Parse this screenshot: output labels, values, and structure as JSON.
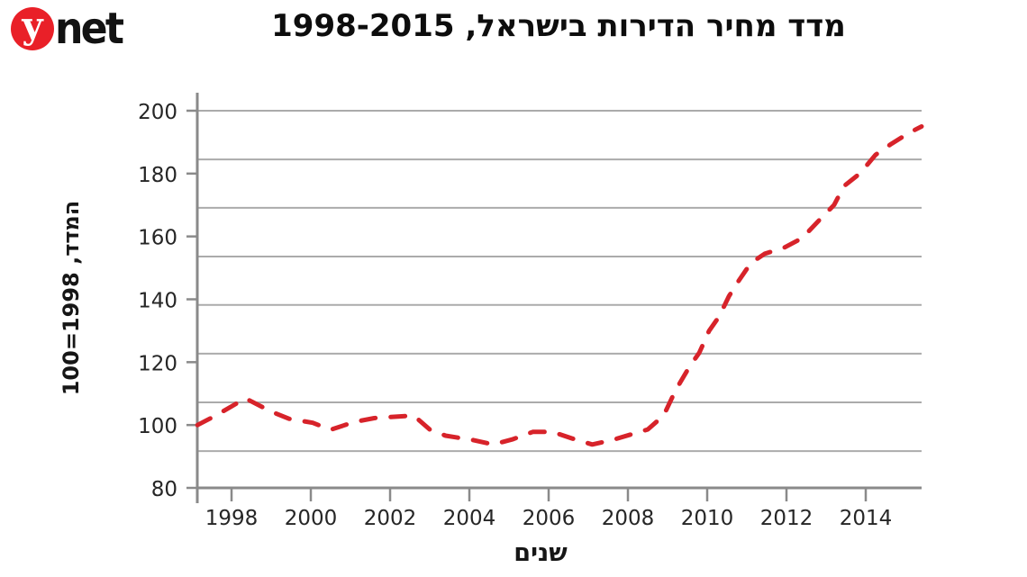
{
  "logo": {
    "brand_circle_letter": "y",
    "brand_rest": "net",
    "circle_color": "#e92028",
    "text_color": "#121212"
  },
  "title": "מדד מחיר הדירות בישראל, 1998-2015",
  "colors": {
    "line": "#d7232a",
    "gridline": "#ababab",
    "axis": "#8a8a8a",
    "tick_text": "#262626"
  },
  "chart_data": {
    "type": "line",
    "title": "מדד מחיר הדירות בישראל, 1998-2015",
    "xlabel": "שנים",
    "ylabel": "המדד, 1998=100",
    "xlim": [
      1997.136,
      2015.409
    ],
    "ylim": [
      80,
      200
    ],
    "x_ticks": [
      1998,
      2000,
      2002,
      2004,
      2006,
      2008,
      2010,
      2012,
      2014
    ],
    "y_ticks": [
      80,
      100,
      120,
      140,
      160,
      180,
      200
    ],
    "gridline_values": [
      91.7,
      107.2,
      122.7,
      138.2,
      153.6,
      169.1,
      184.5,
      200
    ],
    "grid": "horizontal",
    "legend_position": "none",
    "line_style": "dashed",
    "series": [
      {
        "name": "מדד מחיר הדירות",
        "points": [
          [
            1997.14,
            100.0
          ],
          [
            1997.6,
            103.0
          ],
          [
            1998.35,
            108.5
          ],
          [
            1999.0,
            104.3
          ],
          [
            1999.45,
            102.0
          ],
          [
            2000.05,
            100.7
          ],
          [
            2000.5,
            98.5
          ],
          [
            2001.1,
            101.0
          ],
          [
            2001.6,
            102.2
          ],
          [
            2002.2,
            102.7
          ],
          [
            2002.6,
            103.0
          ],
          [
            2003.0,
            98.6
          ],
          [
            2003.4,
            96.6
          ],
          [
            2004.1,
            95.2
          ],
          [
            2004.6,
            93.8
          ],
          [
            2005.1,
            95.5
          ],
          [
            2005.6,
            97.8
          ],
          [
            2006.1,
            97.8
          ],
          [
            2006.6,
            95.7
          ],
          [
            2007.1,
            93.8
          ],
          [
            2007.6,
            95.2
          ],
          [
            2008.5,
            98.6
          ],
          [
            2008.9,
            103.0
          ],
          [
            2009.2,
            111.0
          ],
          [
            2009.55,
            118.5
          ],
          [
            2009.8,
            123.0
          ],
          [
            2010.05,
            130.0
          ],
          [
            2010.3,
            134.5
          ],
          [
            2010.55,
            141.0
          ],
          [
            2010.8,
            146.0
          ],
          [
            2011.1,
            151.5
          ],
          [
            2011.45,
            154.5
          ],
          [
            2011.95,
            156.5
          ],
          [
            2012.4,
            159.5
          ],
          [
            2012.85,
            165.5
          ],
          [
            2013.2,
            170.0
          ],
          [
            2013.45,
            176.0
          ],
          [
            2013.85,
            180.0
          ],
          [
            2014.25,
            186.0
          ],
          [
            2014.65,
            189.5
          ],
          [
            2015.1,
            193.0
          ],
          [
            2015.41,
            195.0
          ]
        ]
      }
    ]
  }
}
